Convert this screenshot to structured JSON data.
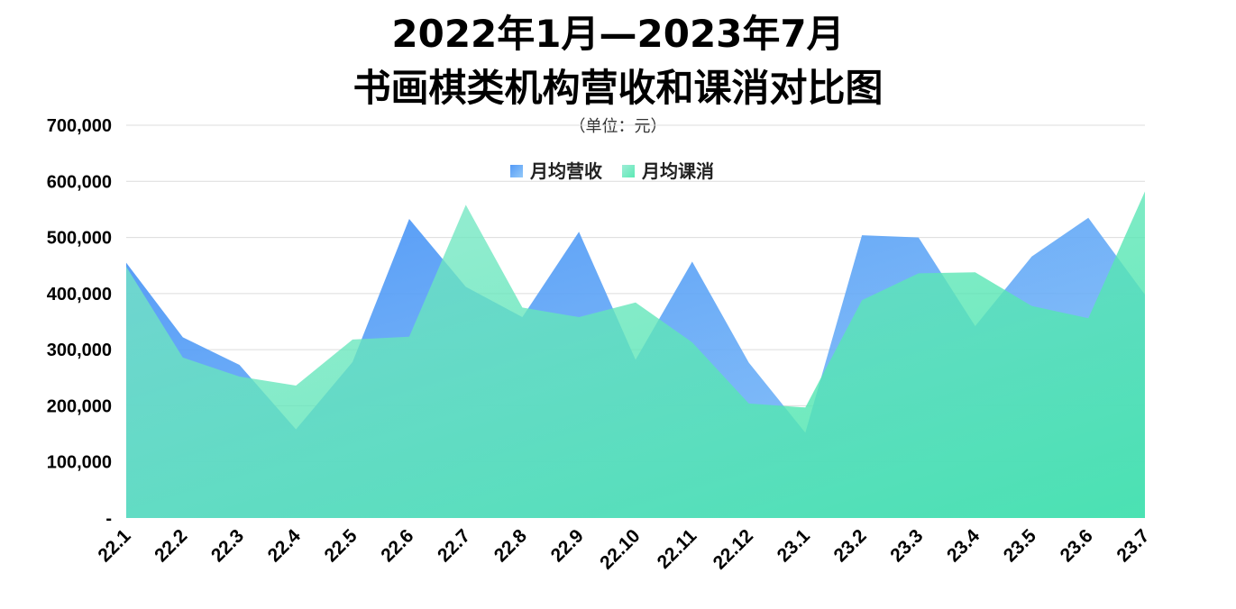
{
  "chart_data": {
    "type": "area",
    "title": "2022年1月—2023年7月",
    "title_line2": "书画棋类机构营收和课消对比图",
    "subtitle": "（单位：元）",
    "categories": [
      "22.1",
      "22.2",
      "22.3",
      "22.4",
      "22.5",
      "22.6",
      "22.7",
      "22.8",
      "22.9",
      "22.10",
      "22.11",
      "22.12",
      "23.1",
      "23.2",
      "23.3",
      "23.4",
      "23.5",
      "23.6",
      "23.7"
    ],
    "series": [
      {
        "name": "月均营收",
        "color": "#4f9cf5",
        "values": [
          455000,
          322000,
          273000,
          158000,
          278000,
          533000,
          412000,
          358000,
          510000,
          282000,
          457000,
          277000,
          152000,
          504000,
          500000,
          342000,
          466000,
          535000,
          398000
        ]
      },
      {
        "name": "月均课消",
        "color": "#5ee6b4",
        "values": [
          448000,
          286000,
          252000,
          236000,
          318000,
          323000,
          558000,
          375000,
          358000,
          384000,
          313000,
          204000,
          197000,
          388000,
          436000,
          438000,
          378000,
          356000,
          582000
        ]
      }
    ],
    "ylim": [
      0,
      700000
    ],
    "yticks": [
      "-",
      "100,000",
      "200,000",
      "300,000",
      "400,000",
      "500,000",
      "600,000",
      "700,000"
    ],
    "grid": true,
    "legend": "top-center"
  }
}
